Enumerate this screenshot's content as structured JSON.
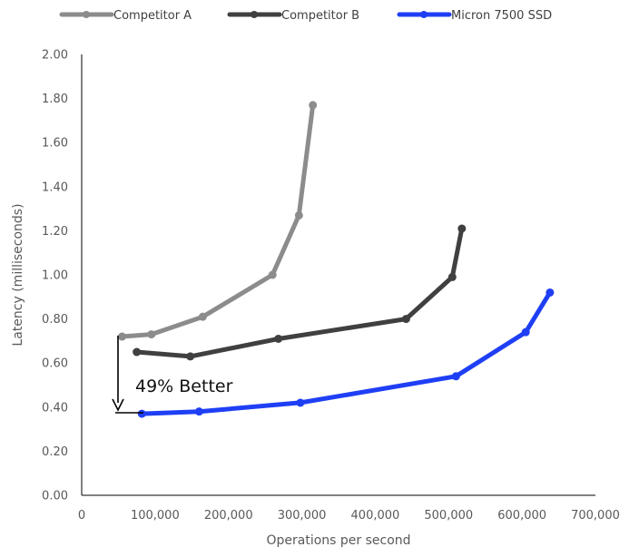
{
  "chart_data": {
    "type": "line",
    "title": "",
    "xlabel": "Operations per second",
    "ylabel": "Latency (milliseconds)",
    "xlim": [
      0,
      700000
    ],
    "ylim": [
      0,
      2.0
    ],
    "x_ticks": [
      "0",
      "100,000",
      "200,000",
      "300,000",
      "400,000",
      "500,000",
      "600,000",
      "700,000"
    ],
    "y_ticks": [
      "0.00",
      "0.20",
      "0.40",
      "0.60",
      "0.80",
      "1.00",
      "1.20",
      "1.40",
      "1.60",
      "1.80",
      "2.00"
    ],
    "grid": false,
    "legend_position": "top",
    "series": [
      {
        "name": "Competitor A",
        "color": "#8c8c8c",
        "x": [
          55000,
          95000,
          165000,
          260000,
          296000,
          315000
        ],
        "y": [
          0.72,
          0.73,
          0.81,
          1.0,
          1.27,
          1.77
        ]
      },
      {
        "name": "Competitor B",
        "color": "#404040",
        "x": [
          75000,
          148000,
          268000,
          442000,
          505000,
          518000
        ],
        "y": [
          0.65,
          0.63,
          0.71,
          0.8,
          0.99,
          1.21
        ]
      },
      {
        "name": "Micron 7500 SSD",
        "color": "#1f3ff5",
        "x": [
          82000,
          160000,
          298000,
          510000,
          605000,
          638000
        ],
        "y": [
          0.37,
          0.38,
          0.42,
          0.54,
          0.74,
          0.92
        ]
      }
    ],
    "annotations": [
      {
        "text": "49% Better"
      }
    ]
  }
}
